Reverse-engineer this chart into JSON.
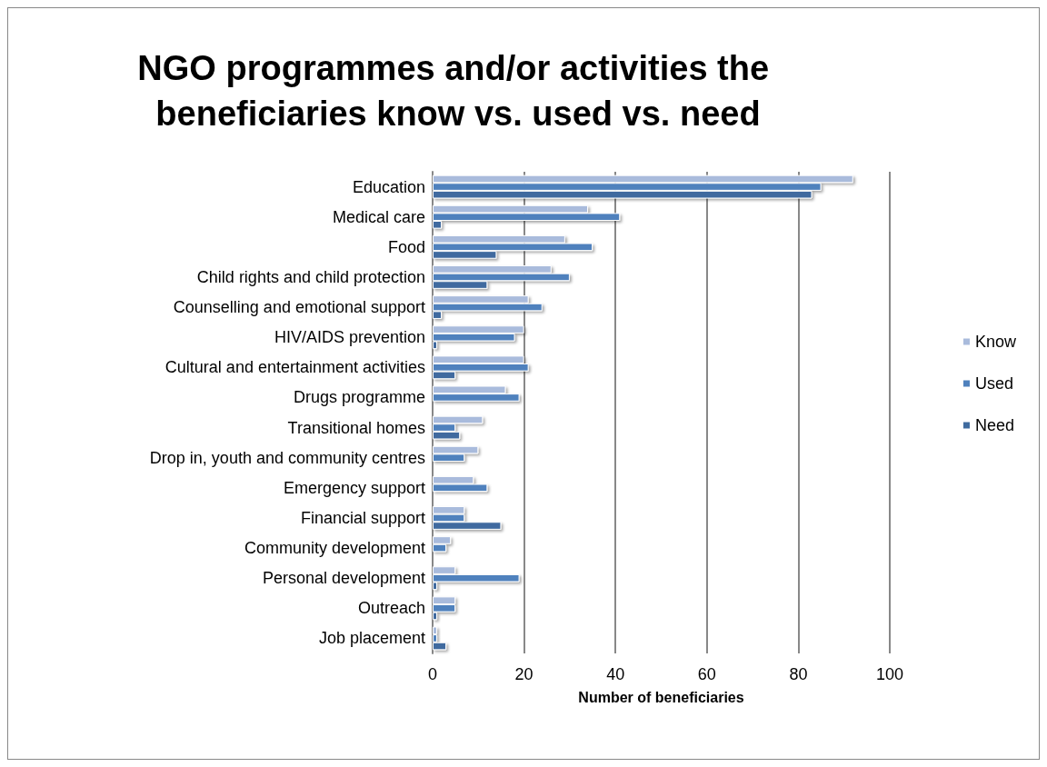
{
  "chart_data": {
    "type": "bar",
    "orientation": "horizontal",
    "title": "NGO programmes and/or activities the beneficiaries know vs. used vs. need",
    "xlabel": "Number of beneficiaries",
    "categories": [
      "Education",
      "Medical care",
      "Food",
      "Child rights and child protection",
      "Counselling and emotional support",
      "HIV/AIDS prevention",
      "Cultural and entertainment activities",
      "Drugs programme",
      "Transitional homes",
      "Drop in, youth and community centres",
      "Emergency support",
      "Financial support",
      "Community development",
      "Personal development",
      "Outreach",
      "Job placement"
    ],
    "series": [
      {
        "name": "Know",
        "color": "#a9bbdc",
        "values": [
          92,
          34,
          29,
          26,
          21,
          20,
          20,
          16,
          11,
          10,
          9,
          7,
          4,
          5,
          5,
          1
        ]
      },
      {
        "name": "Used",
        "color": "#4f81bd",
        "values": [
          85,
          41,
          35,
          30,
          24,
          18,
          21,
          19,
          5,
          7,
          12,
          7,
          3,
          19,
          5,
          1
        ]
      },
      {
        "name": "Need",
        "color": "#3f6b9f",
        "values": [
          83,
          2,
          14,
          12,
          2,
          1,
          5,
          null,
          6,
          null,
          null,
          15,
          null,
          1,
          1,
          3
        ]
      }
    ],
    "xlim": [
      0,
      100
    ],
    "xticks": [
      0,
      20,
      40,
      60,
      80,
      100
    ],
    "grid": "x",
    "legend": "right"
  }
}
